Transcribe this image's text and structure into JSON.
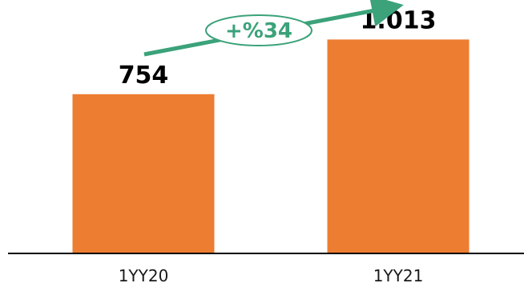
{
  "chart_data": {
    "type": "bar",
    "categories": [
      "1YY20",
      "1YY21"
    ],
    "values": [
      754,
      1013
    ],
    "value_labels": [
      "754",
      "1.013"
    ],
    "ylim": [
      0,
      1200
    ],
    "grid": false,
    "annotation": "+%34",
    "colors": {
      "bar": "#ED7D31",
      "arrow": "#3BA27A",
      "axis": "#000000"
    }
  }
}
